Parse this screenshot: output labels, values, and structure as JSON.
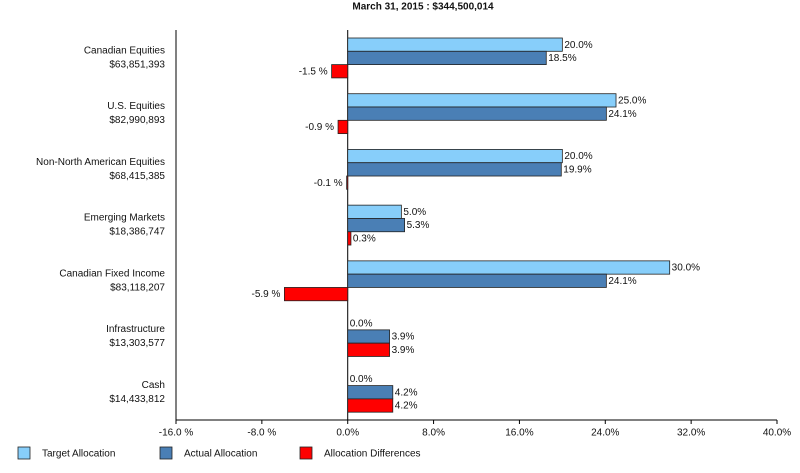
{
  "chart_data": {
    "type": "hbar",
    "title": "March 31, 2015 : $344,500,014",
    "categories": [
      "Canadian Equities",
      "U.S. Equities",
      "Non-North American Equities",
      "Emerging Markets",
      "Canadian Fixed Income",
      "Infrastructure",
      "Cash"
    ],
    "category_labels": [
      "$63,851,393",
      "$82,990,893",
      "$68,415,385",
      "$18,386,747",
      "$83,118,207",
      "$13,303,577",
      "$14,433,812"
    ],
    "series": [
      {
        "name": "Target Allocation",
        "color": "#87cefa",
        "values": [
          20,
          25,
          20,
          5,
          30,
          0,
          0
        ],
        "value_labels": [
          "20.0%",
          "25.0%",
          "20.0%",
          "5.0%",
          "30.0%",
          "0.0%",
          "0.0%"
        ]
      },
      {
        "name": "Actual Allocation",
        "color": "#4a7fb5",
        "values": [
          18.5,
          24.1,
          19.9,
          5.3,
          24.1,
          3.9,
          4.2
        ],
        "value_labels": [
          "18.5%",
          "24.1%",
          "19.9%",
          "5.3%",
          "24.1%",
          "3.9%",
          "4.2%"
        ]
      },
      {
        "name": "Allocation Differences",
        "color": "#ff0000",
        "values": [
          -1.5,
          -0.9,
          -0.1,
          0.3,
          -5.9,
          3.9,
          4.2
        ],
        "value_labels": [
          "-1.5 %",
          "-0.9 %",
          "-0.1 %",
          "0.3%",
          "-5.9 %",
          "3.9%",
          "4.2%"
        ]
      }
    ],
    "xlim": [
      -16,
      40
    ],
    "xticks": [
      {
        "value": -16,
        "label": "-16.0 %"
      },
      {
        "value": -8,
        "label": "-8.0 %"
      },
      {
        "value": 0,
        "label": "0.0%"
      },
      {
        "value": 8,
        "label": "8.0%"
      },
      {
        "value": 16,
        "label": "16.0%"
      },
      {
        "value": 24,
        "label": "24.0%"
      },
      {
        "value": 32,
        "label": "32.0%"
      },
      {
        "value": 40,
        "label": "40.0%"
      }
    ]
  }
}
